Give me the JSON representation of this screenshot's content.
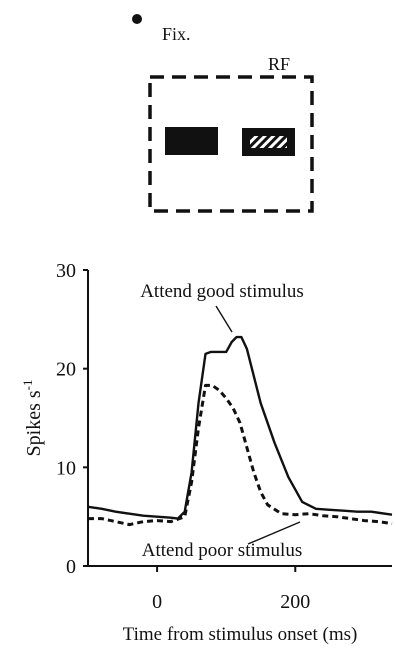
{
  "stimulus_diagram": {
    "fixation_label": "Fix.",
    "rf_label": "RF",
    "stimuli": [
      "solid-bar",
      "striped-bar"
    ],
    "colors": {
      "ink": "#111111",
      "stripe": "#ffffff"
    }
  },
  "chart_data": {
    "type": "line",
    "title": "",
    "xlabel": "Time from stimulus onset (ms)",
    "ylabel": "Spikes s",
    "ylabel_superscript": "-1",
    "xlim": [
      -100,
      340
    ],
    "ylim": [
      0,
      30
    ],
    "x_ticks": [
      0,
      200
    ],
    "x_tick_labels": [
      "0",
      "200"
    ],
    "y_ticks": [
      0,
      10,
      20,
      30
    ],
    "y_tick_labels": [
      "0",
      "10",
      "20",
      "30"
    ],
    "grid": false,
    "series": [
      {
        "name": "Attend good stimulus",
        "style": "solid",
        "color": "#111111",
        "x": [
          -100,
          -80,
          -60,
          -40,
          -20,
          0,
          20,
          30,
          40,
          50,
          60,
          70,
          78,
          85,
          100,
          108,
          115,
          122,
          130,
          150,
          170,
          190,
          210,
          230,
          250,
          270,
          290,
          310,
          330,
          340
        ],
        "y": [
          6.0,
          5.8,
          5.5,
          5.3,
          5.1,
          5.0,
          4.9,
          4.8,
          5.5,
          9.5,
          16.5,
          21.5,
          21.7,
          21.7,
          21.7,
          22.7,
          23.2,
          23.2,
          22.0,
          16.5,
          12.5,
          9.0,
          6.5,
          5.8,
          5.7,
          5.6,
          5.5,
          5.5,
          5.3,
          5.2
        ]
      },
      {
        "name": "Attend poor stimulus",
        "style": "dashed",
        "color": "#111111",
        "x": [
          -100,
          -80,
          -60,
          -40,
          -20,
          0,
          20,
          40,
          50,
          60,
          70,
          80,
          90,
          100,
          110,
          120,
          130,
          140,
          150,
          160,
          180,
          200,
          220,
          240,
          260,
          280,
          300,
          320,
          340
        ],
        "y": [
          4.8,
          4.8,
          4.5,
          4.2,
          4.5,
          4.6,
          4.5,
          5.0,
          8.5,
          14.0,
          18.3,
          18.3,
          17.8,
          17.0,
          16.0,
          14.5,
          12.0,
          9.5,
          7.5,
          6.2,
          5.3,
          5.2,
          5.3,
          5.1,
          5.0,
          4.8,
          4.6,
          4.5,
          4.3
        ]
      }
    ],
    "annotations": [
      {
        "text": "Attend good stimulus",
        "series": 0,
        "x": 110,
        "y": 23.2
      },
      {
        "text": "Attend poor stimulus",
        "series": 1,
        "x": 220,
        "y": 5.2
      }
    ]
  }
}
